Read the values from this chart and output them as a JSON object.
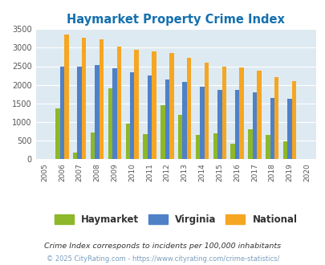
{
  "title": "Haymarket Property Crime Index",
  "years": [
    2005,
    2006,
    2007,
    2008,
    2009,
    2010,
    2011,
    2012,
    2013,
    2014,
    2015,
    2016,
    2017,
    2018,
    2019,
    2020
  ],
  "haymarket": [
    null,
    1370,
    175,
    720,
    1900,
    950,
    680,
    1450,
    1200,
    650,
    700,
    420,
    800,
    650,
    475,
    null
  ],
  "virginia": [
    null,
    2490,
    2490,
    2540,
    2450,
    2330,
    2250,
    2150,
    2070,
    1940,
    1870,
    1870,
    1790,
    1650,
    1630,
    null
  ],
  "national": [
    null,
    3350,
    3270,
    3220,
    3040,
    2950,
    2900,
    2860,
    2720,
    2600,
    2500,
    2470,
    2380,
    2200,
    2110,
    null
  ],
  "haymarket_color": "#8db82a",
  "virginia_color": "#4f81c7",
  "national_color": "#f5a623",
  "bg_color": "#deeaf1",
  "title_color": "#1470af",
  "ylim": [
    0,
    3500
  ],
  "ylabel_ticks": [
    0,
    500,
    1000,
    1500,
    2000,
    2500,
    3000,
    3500
  ],
  "footnote1": "Crime Index corresponds to incidents per 100,000 inhabitants",
  "footnote2": "© 2025 CityRating.com - https://www.cityrating.com/crime-statistics/",
  "footnote1_color": "#333333",
  "footnote2_color": "#7a9fbe"
}
